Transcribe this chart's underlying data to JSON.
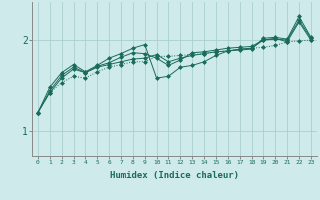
{
  "title": "",
  "xlabel": "Humidex (Indice chaleur)",
  "ylabel": "",
  "background_color": "#ceeaea",
  "line_color": "#1a6b5a",
  "grid_color": "#aacece",
  "xlim": [
    -0.5,
    23.5
  ],
  "ylim": [
    0.72,
    2.42
  ],
  "yticks": [
    1,
    2
  ],
  "xticks": [
    0,
    1,
    2,
    3,
    4,
    5,
    6,
    7,
    8,
    9,
    10,
    11,
    12,
    13,
    14,
    15,
    16,
    17,
    18,
    19,
    20,
    21,
    22,
    23
  ],
  "series": [
    {
      "y": [
        1.2,
        1.42,
        1.53,
        1.6,
        1.58,
        1.65,
        1.7,
        1.73,
        1.76,
        1.76,
        1.82,
        1.82,
        1.83,
        1.84,
        1.85,
        1.87,
        1.88,
        1.9,
        1.91,
        1.92,
        1.94,
        1.98,
        1.99,
        2.0
      ],
      "ls": "dotted"
    },
    {
      "y": [
        1.2,
        1.42,
        1.58,
        1.68,
        1.64,
        1.7,
        1.73,
        1.76,
        1.79,
        1.8,
        1.84,
        1.76,
        1.8,
        1.83,
        1.85,
        1.87,
        1.88,
        1.9,
        1.91,
        2.0,
        2.02,
        1.98,
        2.2,
        2.0
      ],
      "ls": "solid"
    },
    {
      "y": [
        1.2,
        1.44,
        1.61,
        1.7,
        1.64,
        1.71,
        1.75,
        1.81,
        1.86,
        1.85,
        1.8,
        1.72,
        1.78,
        1.86,
        1.87,
        1.89,
        1.91,
        1.92,
        1.93,
        2.0,
        2.01,
        2.0,
        2.22,
        2.02
      ],
      "ls": "solid"
    },
    {
      "y": [
        1.2,
        1.48,
        1.64,
        1.73,
        1.65,
        1.72,
        1.8,
        1.85,
        1.91,
        1.95,
        1.58,
        1.6,
        1.7,
        1.72,
        1.76,
        1.83,
        1.88,
        1.89,
        1.9,
        2.02,
        2.03,
        2.01,
        2.26,
        2.03
      ],
      "ls": "solid"
    }
  ]
}
